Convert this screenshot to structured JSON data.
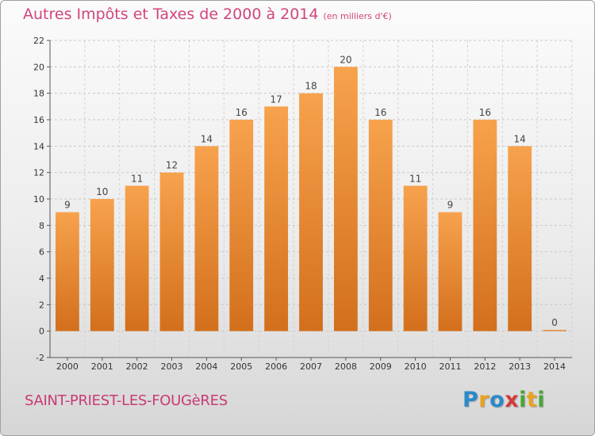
{
  "chart_data": {
    "type": "bar",
    "title": "Autres Impôts et Taxes de 2000 à 2014",
    "unit_note": "(en milliers d'€)",
    "categories": [
      "2000",
      "2001",
      "2002",
      "2003",
      "2004",
      "2005",
      "2006",
      "2007",
      "2008",
      "2009",
      "2010",
      "2011",
      "2012",
      "2013",
      "2014"
    ],
    "values": [
      9,
      10,
      11,
      12,
      14,
      16,
      17,
      18,
      20,
      16,
      11,
      9,
      16,
      14,
      0
    ],
    "ylim": [
      -2,
      22
    ],
    "yticks": [
      -2,
      0,
      2,
      4,
      6,
      8,
      10,
      12,
      14,
      16,
      18,
      20,
      22
    ],
    "grid": true,
    "bar_color_top": "#f7a24d",
    "bar_color_bottom": "#d36f1c"
  },
  "footer": {
    "commune": "SAINT-PRIEST-LES-FOUGèRES",
    "logo_letters": [
      "P",
      "r",
      "o",
      "x",
      "i",
      "t",
      "i"
    ],
    "logo_colors": [
      "#2b89c8",
      "#e9a21e",
      "#2b89c8",
      "#d63a3a",
      "#4aa535",
      "#e9a21e",
      "#4aa535"
    ]
  }
}
